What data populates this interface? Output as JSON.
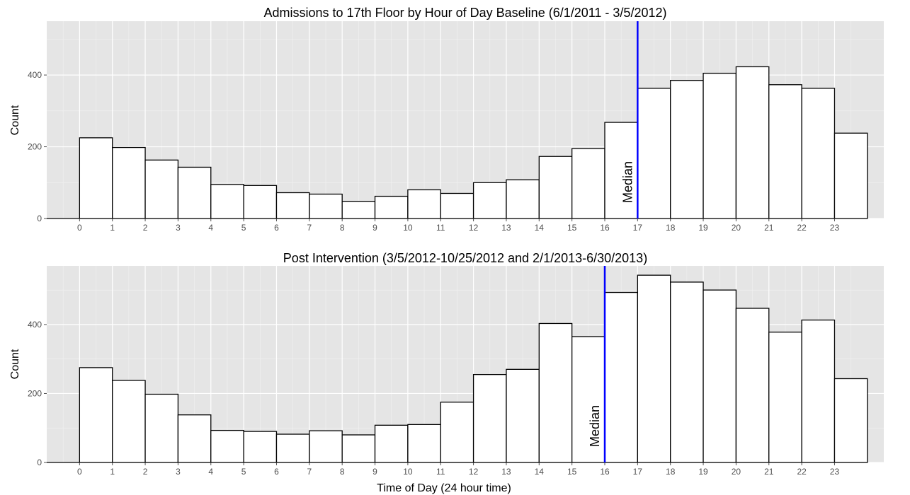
{
  "chart_data": [
    {
      "type": "bar",
      "title": "Admissions to 17th Floor by Hour of Day Baseline (6/1/2011 - 3/5/2012)",
      "ylabel": "Count",
      "xlabel": "",
      "x_ticks": [
        "0",
        "1",
        "2",
        "3",
        "4",
        "5",
        "6",
        "7",
        "8",
        "9",
        "10",
        "11",
        "12",
        "13",
        "14",
        "15",
        "16",
        "17",
        "18",
        "19",
        "20",
        "21",
        "22",
        "23"
      ],
      "y_ticks": [
        0,
        200,
        400
      ],
      "ylim": [
        0,
        550
      ],
      "xlim": [
        -1,
        24.5
      ],
      "bin_starts": [
        0,
        1,
        2,
        3,
        4,
        5,
        6,
        7,
        8,
        9,
        10,
        11,
        12,
        13,
        14,
        15,
        16,
        17,
        18,
        19,
        20,
        21,
        22,
        23
      ],
      "values": [
        225,
        198,
        163,
        143,
        95,
        92,
        72,
        68,
        48,
        62,
        80,
        70,
        100,
        108,
        173,
        195,
        268,
        363,
        385,
        405,
        423,
        373,
        363,
        238
      ],
      "median": 17,
      "median_label": "Median",
      "grid": true
    },
    {
      "type": "bar",
      "title": "Post Intervention (3/5/2012-10/25/2012 and 2/1/2013-6/30/2013)",
      "ylabel": "Count",
      "xlabel": "Time of Day (24 hour time)",
      "x_ticks": [
        "0",
        "1",
        "2",
        "3",
        "4",
        "5",
        "6",
        "7",
        "8",
        "9",
        "10",
        "11",
        "12",
        "13",
        "14",
        "15",
        "16",
        "17",
        "18",
        "19",
        "20",
        "21",
        "22",
        "23"
      ],
      "y_ticks": [
        0,
        200,
        400
      ],
      "ylim": [
        0,
        570
      ],
      "xlim": [
        -1,
        24.5
      ],
      "bin_starts": [
        0,
        1,
        2,
        3,
        4,
        5,
        6,
        7,
        8,
        9,
        10,
        11,
        12,
        13,
        14,
        15,
        16,
        17,
        18,
        19,
        20,
        21,
        22,
        23
      ],
      "values": [
        275,
        238,
        198,
        138,
        93,
        90,
        82,
        92,
        80,
        108,
        110,
        175,
        255,
        270,
        403,
        365,
        493,
        543,
        523,
        500,
        447,
        378,
        413,
        243
      ],
      "median": 16,
      "median_label": "Median",
      "grid": true
    }
  ]
}
